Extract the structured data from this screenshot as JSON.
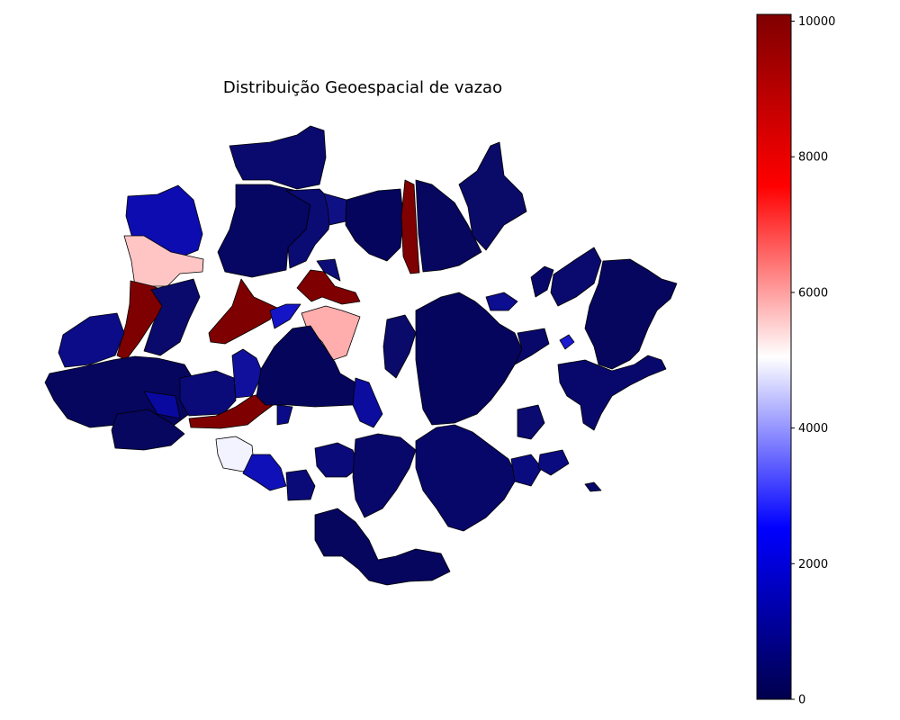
{
  "title": "Distribuição Geoespacial de vazao",
  "colorbar": {
    "colormap": "seismic",
    "min": 0,
    "max": 10100,
    "ticks": [
      {
        "value": 0,
        "label": "0"
      },
      {
        "value": 2000,
        "label": "2000"
      },
      {
        "value": 4000,
        "label": "4000"
      },
      {
        "value": 6000,
        "label": "6000"
      },
      {
        "value": 8000,
        "label": "8000"
      },
      {
        "value": 10000,
        "label": "10000"
      }
    ],
    "colors": [
      "#00004c",
      "#0000ff",
      "#ffffff",
      "#ff0000",
      "#7f0000"
    ]
  },
  "map": {
    "legend_placement": "right",
    "regions_high_vazao_approx": [
      10100,
      10100,
      10100,
      10100,
      10100
    ],
    "regions_mid_vazao_approx": [
      5700,
      6100,
      4900
    ]
  }
}
